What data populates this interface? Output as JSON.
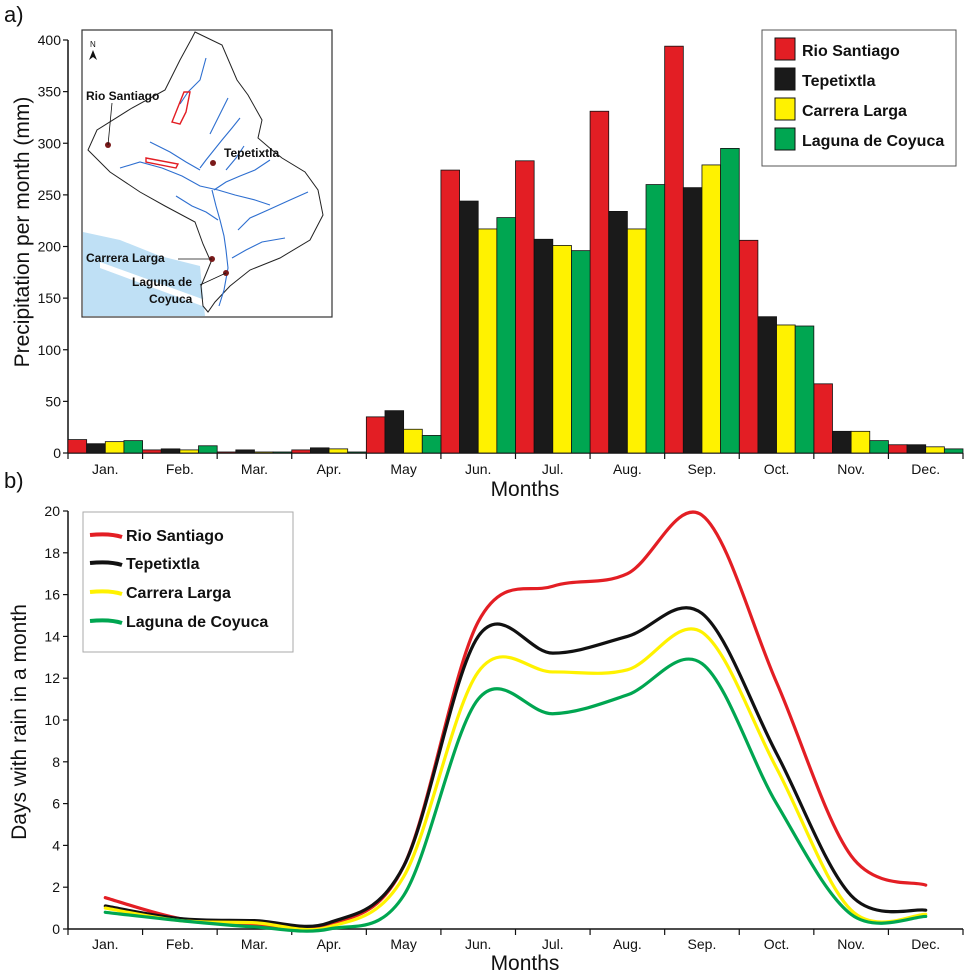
{
  "panels": {
    "a": "a)",
    "b": "b)"
  },
  "chart_data": [
    {
      "type": "bar",
      "ylabel": "Precipitation per month (mm)",
      "xlabel": "Months",
      "ylim": [
        0,
        400
      ],
      "yticks": [
        0,
        50,
        100,
        150,
        200,
        250,
        300,
        350,
        400
      ],
      "categories": [
        "Jan.",
        "Feb.",
        "Mar.",
        "Apr.",
        "May",
        "Jun.",
        "Jul.",
        "Aug.",
        "Sep.",
        "Oct.",
        "Nov.",
        "Dec."
      ],
      "legend_position": "top-right",
      "series": [
        {
          "name": "Rio Santiago",
          "color": "#e31e24",
          "values": [
            13,
            3,
            1,
            3,
            35,
            274,
            283,
            331,
            394,
            206,
            67,
            8
          ]
        },
        {
          "name": "Tepetixtla",
          "color": "#1a1a1a",
          "values": [
            9,
            4,
            3,
            5,
            41,
            244,
            207,
            234,
            257,
            132,
            21,
            8
          ]
        },
        {
          "name": "Carrera Larga",
          "color": "#fff200",
          "values": [
            11,
            3,
            1,
            4,
            23,
            217,
            201,
            217,
            279,
            124,
            21,
            6
          ]
        },
        {
          "name": "Laguna de Coyuca",
          "color": "#00a651",
          "values": [
            12,
            7,
            1,
            1,
            17,
            228,
            196,
            260,
            295,
            123,
            12,
            4
          ]
        }
      ]
    },
    {
      "type": "line",
      "ylabel": "Days with rain in a month",
      "xlabel": "Months",
      "ylim": [
        0,
        20
      ],
      "yticks": [
        0,
        2,
        4,
        6,
        8,
        10,
        12,
        14,
        16,
        18,
        20
      ],
      "categories": [
        "Jan.",
        "Feb.",
        "Mar.",
        "Apr.",
        "May",
        "Jun.",
        "Jul.",
        "Aug.",
        "Sep.",
        "Oct.",
        "Nov.",
        "Dec."
      ],
      "legend_position": "top-left",
      "series": [
        {
          "name": "Rio Santiago",
          "color": "#e31e24",
          "values": [
            1.5,
            0.5,
            0.2,
            0.2,
            3.0,
            14.7,
            16.4,
            17.0,
            19.8,
            11.8,
            3.5,
            2.1
          ]
        },
        {
          "name": "Tepetixtla",
          "color": "#111111",
          "values": [
            1.1,
            0.5,
            0.4,
            0.3,
            3.0,
            14.0,
            13.2,
            14.0,
            15.1,
            8.4,
            1.6,
            0.9
          ]
        },
        {
          "name": "Carrera Larga",
          "color": "#fff200",
          "values": [
            1.0,
            0.4,
            0.3,
            0.1,
            2.5,
            12.3,
            12.3,
            12.4,
            14.2,
            7.7,
            0.9,
            0.7
          ]
        },
        {
          "name": "Laguna de Coyuca",
          "color": "#00a651",
          "values": [
            0.8,
            0.4,
            0.1,
            0.0,
            1.6,
            11.0,
            10.3,
            11.2,
            12.7,
            6.0,
            0.7,
            0.6
          ]
        }
      ]
    }
  ],
  "inset_map": {
    "north_label": "N",
    "stations": [
      "Rio Santiago",
      "Tepetixtla",
      "Carrera Larga",
      "Laguna de",
      "Coyuca"
    ],
    "river_color": "#2e6fd0",
    "sea_color": "#bfe0f5",
    "lake_color": "#e31e24"
  }
}
